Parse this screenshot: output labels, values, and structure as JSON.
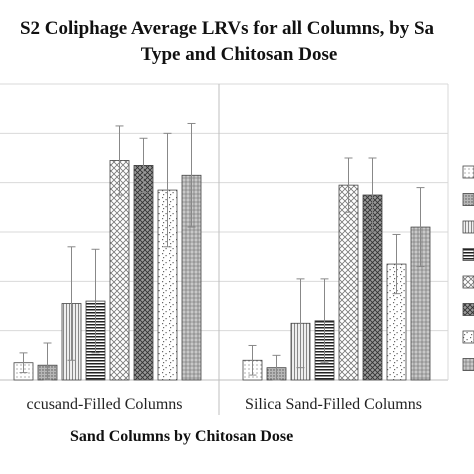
{
  "chart_data": {
    "type": "bar",
    "title_lines": [
      "S2 Coliphage Average LRVs for all Columns, by Sa",
      "Type and Chitosan Dose"
    ],
    "xlabel": "Sand Columns by Chitosan Dose",
    "ylabel": "",
    "categories": [
      "ccusand-Filled Columns",
      "Silica Sand-Filled Columns"
    ],
    "ylim": [
      0,
      6
    ],
    "grid": true,
    "legend_position": "right",
    "series": [
      {
        "pattern": "dots",
        "values": [
          0.35,
          0.4
        ],
        "errors": [
          0.2,
          0.3
        ]
      },
      {
        "pattern": "dense",
        "values": [
          0.3,
          0.25
        ],
        "errors": [
          0.45,
          0.25
        ]
      },
      {
        "pattern": "vlines",
        "values": [
          1.55,
          1.15
        ],
        "errors": [
          1.15,
          0.9
        ]
      },
      {
        "pattern": "hlines",
        "values": [
          1.6,
          1.2
        ],
        "errors": [
          1.05,
          0.85
        ]
      },
      {
        "pattern": "checker",
        "values": [
          4.45,
          3.95
        ],
        "errors": [
          0.7,
          0.55
        ]
      },
      {
        "pattern": "crosshatch",
        "values": [
          4.35,
          3.75
        ],
        "errors": [
          0.55,
          0.75
        ]
      },
      {
        "pattern": "confetti",
        "values": [
          3.85,
          2.35
        ],
        "errors": [
          1.15,
          0.6
        ]
      },
      {
        "pattern": "mesh",
        "values": [
          4.15,
          3.1
        ],
        "errors": [
          1.05,
          0.8
        ]
      }
    ]
  }
}
